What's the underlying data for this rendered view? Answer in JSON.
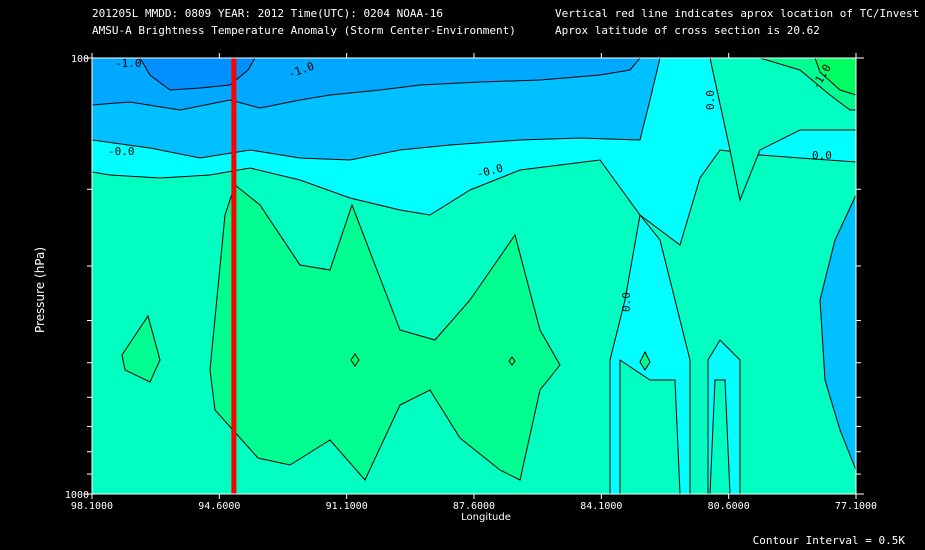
{
  "header": {
    "line1_left": "201205L  MMDD: 0809 YEAR: 2012 Time(UTC): 0204 NOAA-16",
    "line2_left": "AMSU-A Brightness Temperature Anomaly (Storm Center-Environment)",
    "line1_right": "Vertical red line indicates aprox location of TC/Invest",
    "line2_right": "Aprox latitude of cross section is 20.62"
  },
  "footer": {
    "contour_interval": "Contour Interval = 0.5K"
  },
  "chart_data": {
    "type": "contour",
    "xlabel": "Longitude",
    "ylabel": "Pressure (hPa)",
    "x_ticks": [
      "98.1000",
      "94.6000",
      "91.1000",
      "87.6000",
      "84.1000",
      "80.6000",
      "77.1000"
    ],
    "x_range": [
      98.1,
      77.1
    ],
    "y_ticks_labeled": [
      "100",
      "1000"
    ],
    "y_range": [
      1000,
      100
    ],
    "y_scale": "log",
    "storm_center_longitude": 94.2,
    "contour_labels": [
      "-1.0",
      "-1.0",
      "-0.0",
      "-0.0",
      "0.0",
      "0.0",
      "0.0",
      "-0.0",
      "-1.0"
    ],
    "colors": {
      "level_neg2": "#0090ff",
      "level_neg1": "#00c0ff",
      "level_neg05": "#00ffff",
      "level_0": "#00ffc0",
      "level_pos05": "#00ff90",
      "level_pos1": "#00ff60",
      "storm_line": "#ff0000",
      "background": "#000000",
      "text": "#ffffff"
    }
  }
}
